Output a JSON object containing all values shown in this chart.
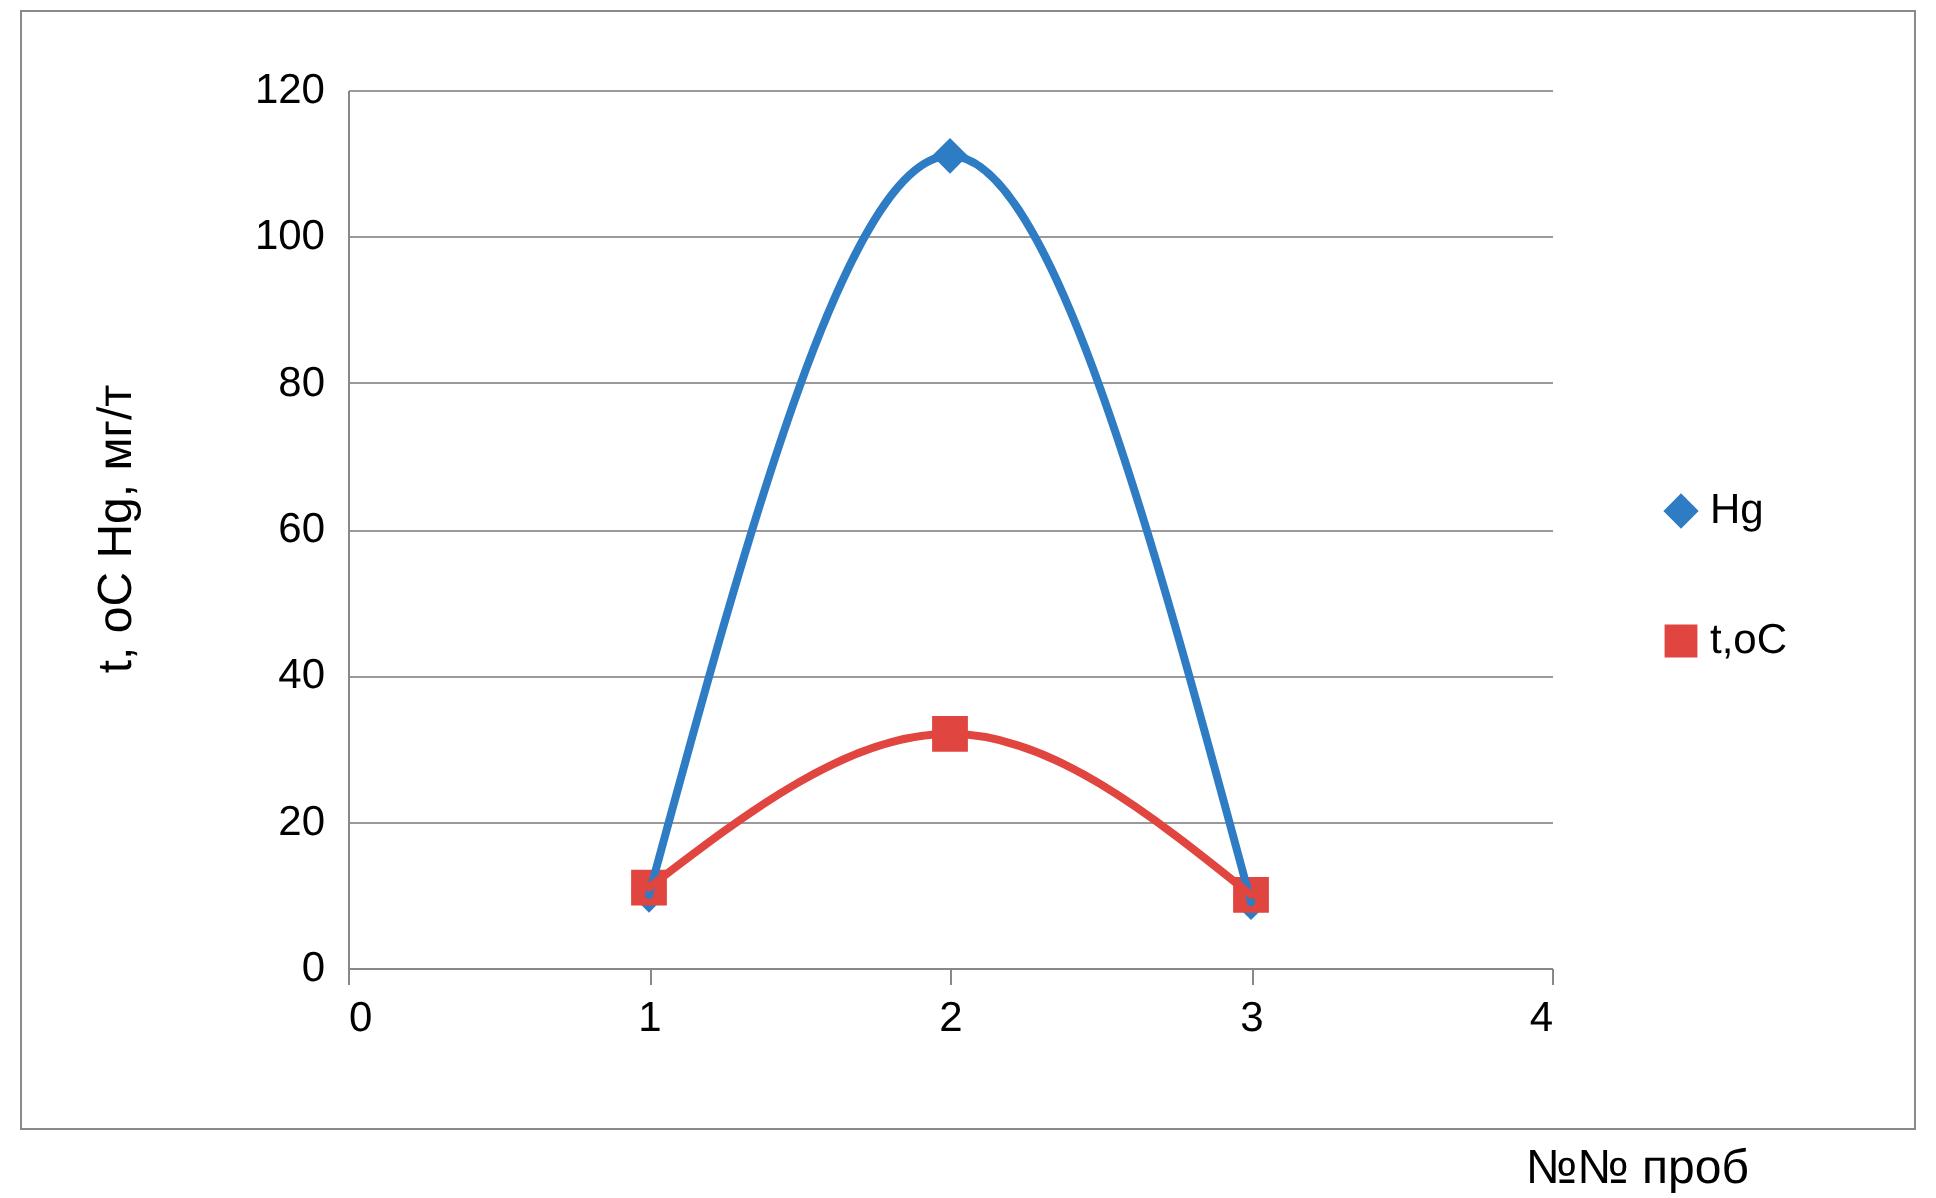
{
  "chart_data": {
    "type": "line",
    "xlabel": "№№  проб",
    "ylabel": "t, oC    Hg, мг/т",
    "series": [
      {
        "name": "Hg",
        "color": "#2e7cc4",
        "marker": "diamond",
        "x": [
          1,
          2,
          3
        ],
        "values": [
          10,
          111,
          9
        ]
      },
      {
        "name": "t,oC",
        "color": "#e0453f",
        "marker": "square",
        "x": [
          1,
          2,
          3
        ],
        "values": [
          11,
          32,
          10
        ]
      }
    ],
    "xlim": [
      0,
      4
    ],
    "xticks": [
      0,
      1,
      2,
      3,
      4
    ],
    "ylim": [
      0,
      120
    ],
    "yticks": [
      0,
      20,
      40,
      60,
      80,
      100,
      120
    ],
    "grid": "y",
    "legend": "right",
    "line_style": "solid"
  }
}
